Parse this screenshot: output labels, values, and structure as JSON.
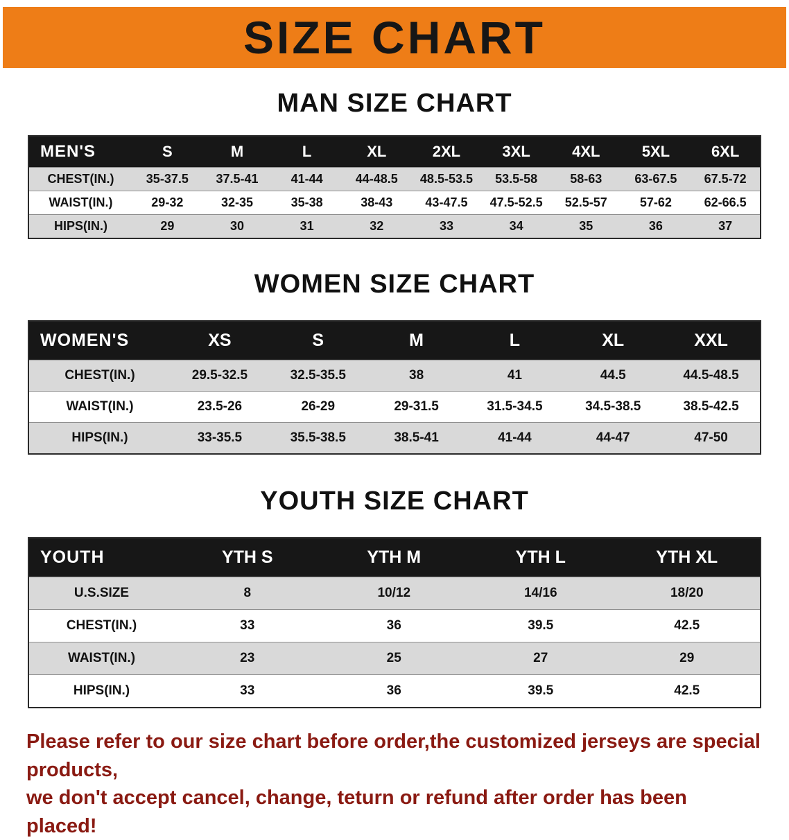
{
  "banner": {
    "title": "SIZE CHART",
    "bg_color": "#ee7d17",
    "text_color": "#161616"
  },
  "sections": [
    {
      "title": "MAN SIZE CHART",
      "table": {
        "header": [
          "MEN'S",
          "S",
          "M",
          "L",
          "XL",
          "2XL",
          "3XL",
          "4XL",
          "5XL",
          "6XL"
        ],
        "rows": [
          [
            "CHEST(IN.)",
            "35-37.5",
            "37.5-41",
            "41-44",
            "44-48.5",
            "48.5-53.5",
            "53.5-58",
            "58-63",
            "63-67.5",
            "67.5-72"
          ],
          [
            "WAIST(IN.)",
            "29-32",
            "32-35",
            "35-38",
            "38-43",
            "43-47.5",
            "47.5-52.5",
            "52.5-57",
            "57-62",
            "62-66.5"
          ],
          [
            "HIPS(IN.)",
            "29",
            "30",
            "31",
            "32",
            "33",
            "34",
            "35",
            "36",
            "37"
          ]
        ]
      }
    },
    {
      "title": "WOMEN SIZE CHART",
      "table": {
        "header": [
          "WOMEN'S",
          "XS",
          "S",
          "M",
          "L",
          "XL",
          "XXL"
        ],
        "rows": [
          [
            "CHEST(IN.)",
            "29.5-32.5",
            "32.5-35.5",
            "38",
            "41",
            "44.5",
            "44.5-48.5"
          ],
          [
            "WAIST(IN.)",
            "23.5-26",
            "26-29",
            "29-31.5",
            "31.5-34.5",
            "34.5-38.5",
            "38.5-42.5"
          ],
          [
            "HIPS(IN.)",
            "33-35.5",
            "35.5-38.5",
            "38.5-41",
            "41-44",
            "44-47",
            "47-50"
          ]
        ]
      }
    },
    {
      "title": "YOUTH SIZE CHART",
      "table": {
        "header": [
          "YOUTH",
          "YTH S",
          "YTH M",
          "YTH L",
          "YTH XL"
        ],
        "rows": [
          [
            "U.S.SIZE",
            "8",
            "10/12",
            "14/16",
            "18/20"
          ],
          [
            "CHEST(IN.)",
            "33",
            "36",
            "39.5",
            "42.5"
          ],
          [
            "WAIST(IN.)",
            "23",
            "25",
            "27",
            "29"
          ],
          [
            "HIPS(IN.)",
            "33",
            "36",
            "39.5",
            "42.5"
          ]
        ]
      }
    }
  ],
  "footer": {
    "line1": "Please refer to our size chart before order,the customized jerseys are special products,",
    "line2": "we don't accept cancel, change, teturn or refund after order has been placed!",
    "text_color": "#8a1a12"
  }
}
